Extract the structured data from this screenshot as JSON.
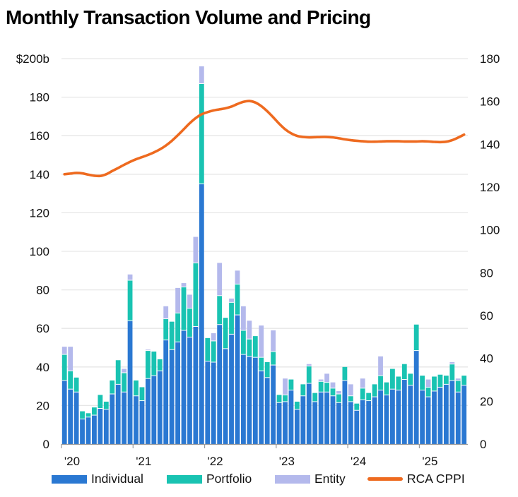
{
  "title": "Monthly Transaction Volume and Pricing",
  "colors": {
    "individual": "#2a78d2",
    "portfolio": "#19c3b2",
    "entity": "#b4b9ec",
    "cppi": "#ee6a1f",
    "grid": "#e6e6e6",
    "axis": "#9a9a9a"
  },
  "legend": [
    {
      "key": "individual",
      "label": "Individual"
    },
    {
      "key": "portfolio",
      "label": "Portfolio"
    },
    {
      "key": "entity",
      "label": "Entity"
    },
    {
      "key": "cppi",
      "label": "RCA CPPI"
    }
  ],
  "chart_data": {
    "type": "bar",
    "stacked": true,
    "title": "Monthly Transaction Volume and Pricing",
    "xlabel": "",
    "ylabel": "",
    "y_left": {
      "ylim": [
        0,
        200
      ],
      "ticks": [
        0,
        20,
        40,
        60,
        80,
        100,
        120,
        140,
        160,
        180,
        200
      ],
      "tick_labels": [
        "0",
        "20",
        "40",
        "60",
        "80",
        "100",
        "120",
        "140",
        "160",
        "180",
        "$200b"
      ],
      "unit": "$ billions"
    },
    "y_right": {
      "ylim": [
        0,
        180
      ],
      "ticks": [
        0,
        20,
        40,
        60,
        80,
        100,
        120,
        140,
        160,
        180
      ],
      "tick_labels": [
        "0",
        "20",
        "40",
        "60",
        "80",
        "100",
        "120",
        "140",
        "160",
        "180"
      ],
      "series": "RCA CPPI"
    },
    "x_ticks": [
      "'20",
      "'21",
      "'22",
      "'23",
      "'24",
      "'25"
    ],
    "x_tick_month_index": [
      0,
      12,
      24,
      36,
      48,
      60
    ],
    "start_month": "2020-01",
    "months": 68,
    "grid": "horizontal",
    "legend_position": "bottom",
    "series": [
      {
        "name": "Individual",
        "key": "individual",
        "type": "bar",
        "values": [
          33,
          28.5,
          27,
          13,
          14,
          15,
          18.5,
          18,
          26,
          31,
          27,
          64,
          25,
          22.5,
          34,
          35.5,
          38,
          54,
          49,
          53,
          59,
          55.5,
          61,
          135,
          43,
          42.5,
          62,
          49.5,
          57,
          67,
          46.5,
          45.5,
          45,
          38,
          34.5,
          41,
          21.5,
          22,
          28,
          18,
          25,
          31.5,
          22,
          27,
          27,
          25,
          21.5,
          33,
          22,
          17.5,
          23,
          22.5,
          24.5,
          28,
          25.5,
          28.5,
          28,
          33.5,
          30.5,
          48.5,
          28,
          24.5,
          27.5,
          29.5,
          31,
          33,
          27,
          30.5
        ]
      },
      {
        "name": "Portfolio",
        "key": "portfolio",
        "type": "bar",
        "values": [
          13.5,
          9.5,
          7.5,
          4,
          2,
          4,
          7,
          4,
          7,
          12.5,
          10,
          21,
          8,
          7,
          14.5,
          12.5,
          6,
          11,
          14.5,
          15,
          22.5,
          15,
          33,
          52,
          12,
          11,
          15,
          16,
          16.5,
          16,
          12.5,
          9,
          11,
          7,
          8,
          7,
          4,
          3.5,
          5.5,
          4,
          6,
          9,
          4.5,
          5.5,
          5,
          4,
          4.5,
          7,
          3,
          3.5,
          6,
          4,
          6.5,
          7.5,
          6.5,
          10.5,
          7,
          8,
          6,
          13.5,
          7.5,
          5,
          7.5,
          6.5,
          4.5,
          8.5,
          6,
          5
        ]
      },
      {
        "name": "Entity",
        "key": "entity",
        "type": "bar",
        "values": [
          4,
          12.5,
          0,
          0,
          0,
          0,
          0,
          0,
          0,
          0,
          2,
          3,
          0,
          0,
          0.5,
          0,
          0,
          6.5,
          0,
          13,
          2,
          7,
          13.5,
          9,
          0,
          4,
          17,
          0,
          2,
          7,
          12.5,
          9.5,
          0,
          16.5,
          0,
          11,
          0,
          8.5,
          0,
          0,
          0,
          1,
          0,
          1,
          4.5,
          3,
          1.5,
          0,
          6,
          0,
          5,
          0,
          0,
          10,
          0,
          0,
          0,
          0,
          0,
          0,
          0,
          4,
          0,
          0,
          0,
          1,
          1,
          0
        ]
      },
      {
        "name": "RCA CPPI",
        "key": "cppi",
        "type": "line",
        "axis": "right",
        "values": [
          126.0,
          126.3,
          126.6,
          126.4,
          125.8,
          125.3,
          125.2,
          126.0,
          127.5,
          128.9,
          130.4,
          131.8,
          133.0,
          134.0,
          135.0,
          136.2,
          137.6,
          139.4,
          141.6,
          144.2,
          147.0,
          149.8,
          152.2,
          154.0,
          155.0,
          155.8,
          156.3,
          156.8,
          157.6,
          158.8,
          159.8,
          160.2,
          159.5,
          157.8,
          155.4,
          152.6,
          149.6,
          147.0,
          145.1,
          143.9,
          143.4,
          143.2,
          143.3,
          143.4,
          143.4,
          143.2,
          142.8,
          142.3,
          141.9,
          141.6,
          141.4,
          141.2,
          141.2,
          141.3,
          141.4,
          141.4,
          141.4,
          141.3,
          141.3,
          141.3,
          141.4,
          141.3,
          141.1,
          141.0,
          141.2,
          141.9,
          143.1,
          144.5
        ]
      }
    ]
  }
}
